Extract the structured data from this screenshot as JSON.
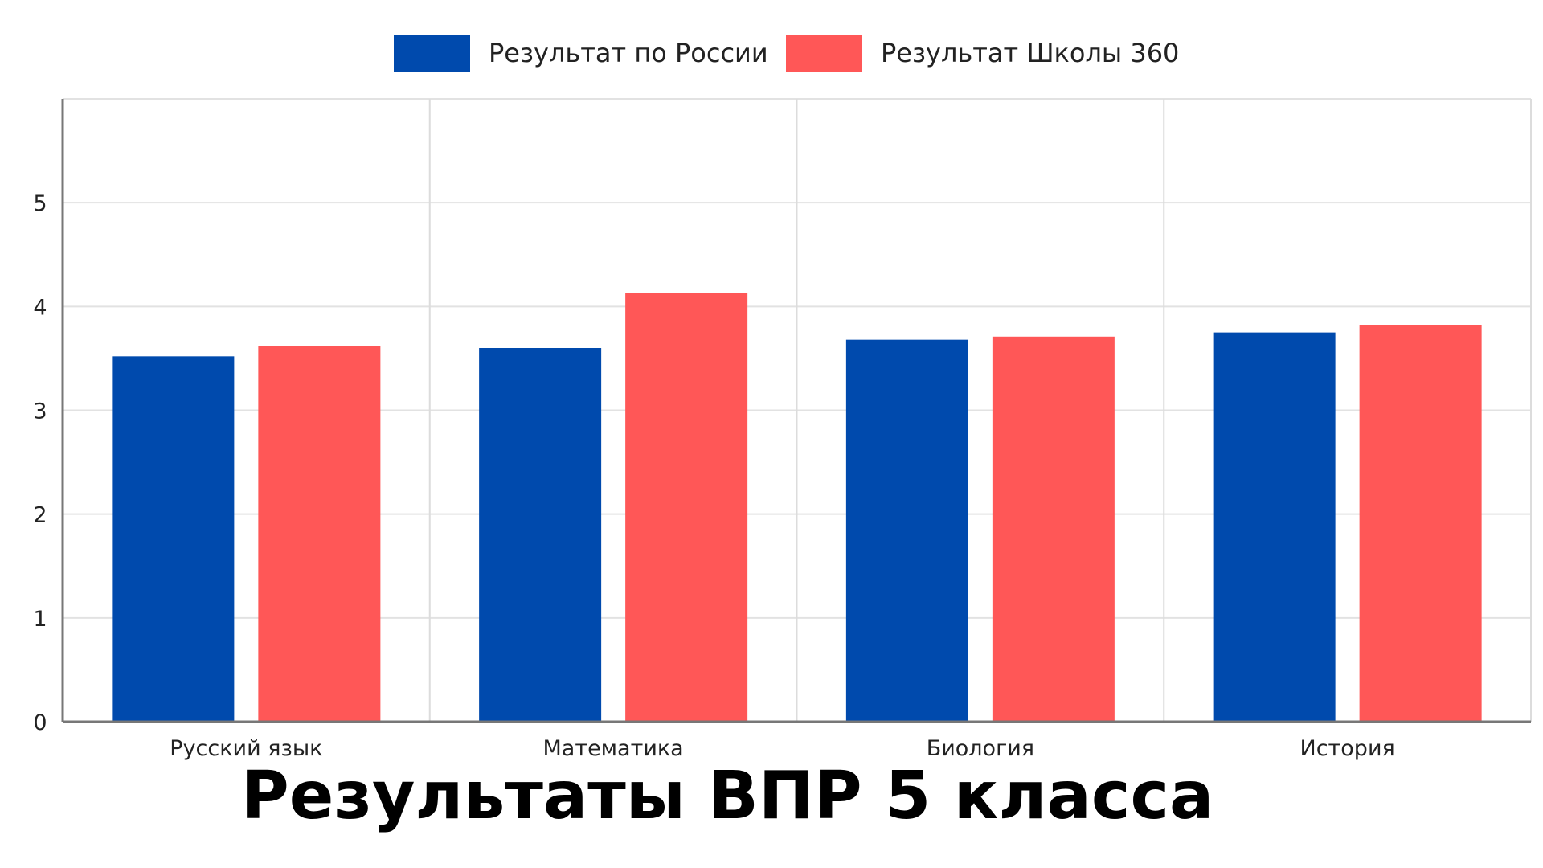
{
  "chart_data": {
    "type": "bar",
    "title": "Результаты ВПР 5 класса",
    "xlabel": "",
    "ylabel": "",
    "categories": [
      "Русский язык",
      "Математика",
      "Биология",
      "История"
    ],
    "series": [
      {
        "name": "Результат по России",
        "color": "#004AAD",
        "values": [
          3.52,
          3.6,
          3.68,
          3.75
        ]
      },
      {
        "name": "Результат Школы 360",
        "color": "#FF5757",
        "values": [
          3.62,
          4.13,
          3.71,
          3.82
        ]
      }
    ],
    "ylim": [
      0,
      6
    ],
    "yticks": [
      0,
      1,
      2,
      3,
      4,
      5
    ],
    "grid": true,
    "legend_position": "top-center"
  }
}
